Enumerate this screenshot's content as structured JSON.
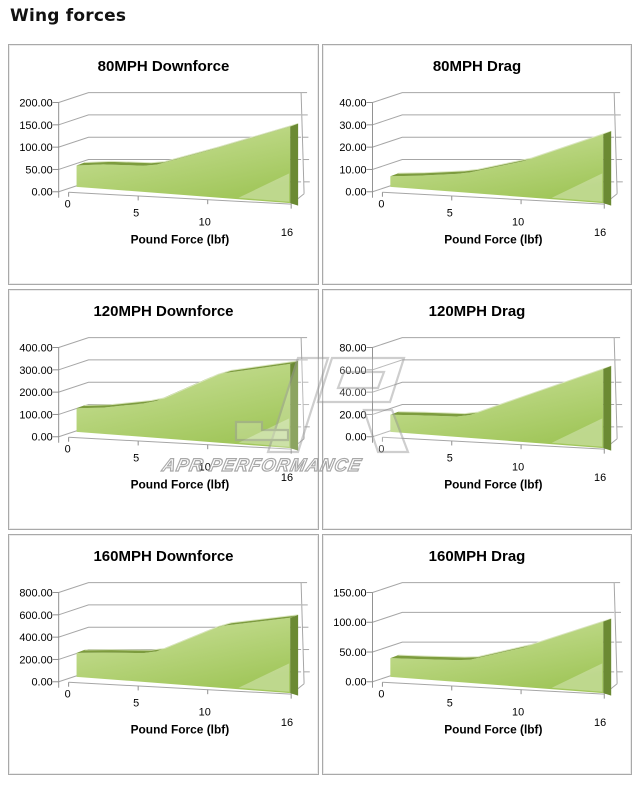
{
  "page": {
    "title": "Wing forces"
  },
  "watermark": {
    "text": "APR PERFORMANCE",
    "logo": "apr-logo"
  },
  "colors": {
    "area_top": "#cde29e",
    "area_bottom": "#a2c75c",
    "band": "#7d9c3e",
    "band_highlight": "#d9e5bd",
    "band_side": "#6b8a33",
    "grid": "#a6a6a6",
    "axis": "#8f8f8f",
    "panel_border": "#a9a9a9",
    "watermark_gray": "#999999",
    "text": "#000000"
  },
  "chart_data": [
    {
      "type": "area",
      "title": "80MPH Downforce",
      "xlabel": "Pound Force (lbf)",
      "x": [
        0,
        2,
        5,
        6,
        10,
        16
      ],
      "values": [
        50,
        56,
        58,
        62,
        98,
        150
      ],
      "ylim": [
        0,
        200
      ],
      "ytick_step": 50,
      "xticks": [
        0,
        5,
        10,
        16
      ],
      "grid": true,
      "legend": false
    },
    {
      "type": "area",
      "title": "80MPH Drag",
      "xlabel": "Pound Force (lbf)",
      "x": [
        0,
        2,
        5,
        6,
        10,
        16
      ],
      "values": [
        5,
        6,
        8,
        9,
        15,
        27
      ],
      "ylim": [
        0,
        40
      ],
      "ytick_step": 10,
      "xticks": [
        0,
        5,
        10,
        16
      ],
      "grid": true,
      "legend": false
    },
    {
      "type": "area",
      "title": "120MPH Downforce",
      "xlabel": "Pound Force (lbf)",
      "x": [
        0,
        2,
        5,
        6,
        10,
        11,
        16
      ],
      "values": [
        110,
        120,
        148,
        162,
        270,
        288,
        330
      ],
      "ylim": [
        0,
        400
      ],
      "ytick_step": 100,
      "xticks": [
        0,
        5,
        10,
        16
      ],
      "grid": true,
      "legend": false
    },
    {
      "type": "area",
      "title": "120MPH Drag",
      "xlabel": "Pound Force (lbf)",
      "x": [
        0,
        2,
        5,
        6,
        10,
        16
      ],
      "values": [
        16,
        17,
        18,
        20,
        38,
        62
      ],
      "ylim": [
        0,
        80
      ],
      "ytick_step": 20,
      "xticks": [
        0,
        5,
        10,
        16
      ],
      "grid": true,
      "legend": false
    },
    {
      "type": "area",
      "title": "160MPH Downforce",
      "xlabel": "Pound Force (lbf)",
      "x": [
        0,
        2,
        5,
        6,
        10,
        11,
        16
      ],
      "values": [
        225,
        240,
        255,
        275,
        480,
        515,
        590
      ],
      "ylim": [
        0,
        800
      ],
      "ytick_step": 200,
      "xticks": [
        0,
        5,
        10,
        16
      ],
      "grid": true,
      "legend": false
    },
    {
      "type": "area",
      "title": "160MPH Drag",
      "xlabel": "Pound Force (lbf)",
      "x": [
        0,
        2,
        5,
        6,
        10,
        16
      ],
      "values": [
        33,
        34,
        36,
        38,
        62,
        105
      ],
      "ylim": [
        0,
        150
      ],
      "ytick_step": 50,
      "xticks": [
        0,
        5,
        10,
        16
      ],
      "grid": true,
      "legend": false
    }
  ]
}
